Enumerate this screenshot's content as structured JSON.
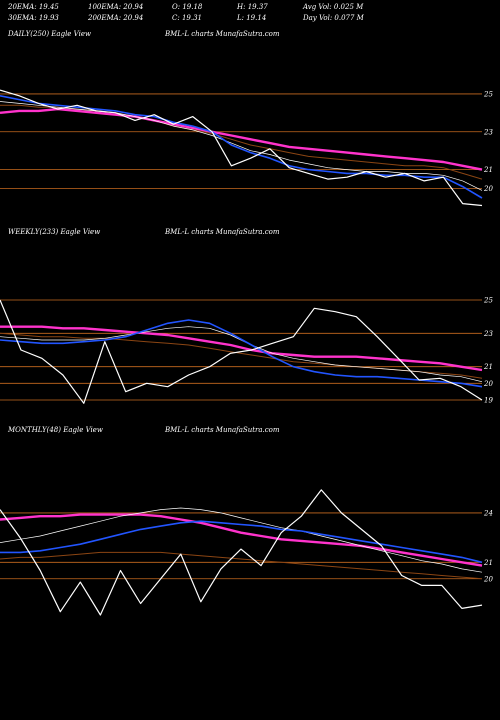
{
  "header": {
    "ema20": "20EMA: 19.45",
    "ema100": "100EMA: 20.94",
    "open": "O: 19.18",
    "high": "H: 19.37",
    "avg_vol": "Avg Vol: 0.025 M",
    "ema30": "30EMA: 19.93",
    "ema200": "200EMA: 20.94",
    "close": "C: 19.31",
    "low": "L: 19.14",
    "day_vol": "Day Vol: 0.077 M"
  },
  "colors": {
    "price": "#ffffff",
    "ema_blue": "#2255ff",
    "ema_magenta": "#ff33cc",
    "ema_brown": "#8b4513",
    "ema_white": "#ffffff",
    "grid": "#c76a1f"
  },
  "chart_data": [
    {
      "type": "line",
      "panel": "daily",
      "title": "DAILY(250) Eagle  View",
      "watermark": "BML-L charts MunafaSutra.com",
      "yticks": [
        25,
        23,
        21,
        20
      ],
      "ylim": [
        18.6,
        26.0
      ],
      "x": [
        0,
        10,
        20,
        30,
        40,
        50,
        60,
        70,
        80,
        90,
        100,
        110,
        120,
        130,
        140,
        150,
        160,
        170,
        180,
        190,
        200,
        210,
        220,
        230,
        240,
        250
      ],
      "series": [
        {
          "role": "price",
          "values": [
            25.2,
            24.9,
            24.5,
            24.2,
            24.4,
            24.1,
            24.0,
            23.6,
            23.9,
            23.4,
            23.8,
            23.0,
            21.2,
            21.6,
            22.1,
            21.1,
            20.8,
            20.5,
            20.6,
            20.9,
            20.6,
            20.8,
            20.4,
            20.6,
            19.2,
            19.1
          ]
        },
        {
          "role": "ema_blue",
          "values": [
            24.9,
            24.7,
            24.5,
            24.4,
            24.3,
            24.2,
            24.1,
            23.9,
            23.8,
            23.5,
            23.3,
            23.0,
            22.3,
            21.9,
            21.6,
            21.2,
            21.0,
            20.9,
            20.8,
            20.8,
            20.7,
            20.7,
            20.6,
            20.6,
            20.1,
            19.5
          ]
        },
        {
          "role": "ema_magenta",
          "values": [
            24.0,
            24.1,
            24.1,
            24.2,
            24.1,
            24.0,
            23.9,
            23.8,
            23.6,
            23.4,
            23.2,
            23.0,
            22.8,
            22.6,
            22.4,
            22.2,
            22.1,
            22.0,
            21.9,
            21.8,
            21.7,
            21.6,
            21.5,
            21.4,
            21.2,
            21.0
          ]
        },
        {
          "role": "ema_brown",
          "values": [
            24.4,
            24.4,
            24.3,
            24.3,
            24.2,
            24.1,
            24.0,
            23.8,
            23.6,
            23.3,
            23.1,
            22.9,
            22.6,
            22.3,
            22.1,
            21.9,
            21.7,
            21.6,
            21.5,
            21.4,
            21.3,
            21.2,
            21.2,
            21.1,
            20.8,
            20.5
          ]
        },
        {
          "role": "ema_white",
          "values": [
            24.6,
            24.5,
            24.4,
            24.3,
            24.2,
            24.1,
            24.0,
            23.8,
            23.6,
            23.3,
            23.1,
            22.8,
            22.4,
            22.0,
            21.8,
            21.5,
            21.3,
            21.1,
            21.0,
            20.9,
            20.9,
            20.8,
            20.8,
            20.7,
            20.4,
            19.9
          ]
        }
      ]
    },
    {
      "type": "line",
      "panel": "weekly",
      "title": "WEEKLY(233) Eagle  View",
      "watermark": "BML-L charts MunafaSutra.com",
      "yticks": [
        25,
        23,
        21,
        20,
        19
      ],
      "ylim": [
        18.4,
        26.2
      ],
      "x": [
        0,
        10,
        20,
        30,
        40,
        50,
        60,
        70,
        80,
        90,
        100,
        110,
        120,
        130,
        140,
        150,
        160,
        170,
        180,
        190,
        200,
        210,
        220,
        230
      ],
      "series": [
        {
          "role": "price",
          "values": [
            25.0,
            22.0,
            21.5,
            20.5,
            18.8,
            22.5,
            19.5,
            20.0,
            19.8,
            20.5,
            21.0,
            21.8,
            22.0,
            22.4,
            22.8,
            24.5,
            24.3,
            24.0,
            22.8,
            21.5,
            20.2,
            20.3,
            19.8,
            19.0
          ]
        },
        {
          "role": "ema_blue",
          "values": [
            22.6,
            22.5,
            22.4,
            22.4,
            22.5,
            22.6,
            22.8,
            23.2,
            23.6,
            23.8,
            23.6,
            23.0,
            22.3,
            21.6,
            21.0,
            20.7,
            20.5,
            20.4,
            20.4,
            20.3,
            20.2,
            20.1,
            20.0,
            19.8
          ]
        },
        {
          "role": "ema_magenta",
          "values": [
            23.4,
            23.4,
            23.4,
            23.3,
            23.3,
            23.2,
            23.1,
            23.0,
            22.9,
            22.7,
            22.5,
            22.3,
            22.0,
            21.8,
            21.7,
            21.6,
            21.6,
            21.6,
            21.5,
            21.4,
            21.3,
            21.2,
            21.0,
            20.8
          ]
        },
        {
          "role": "ema_brown",
          "values": [
            23.0,
            22.9,
            22.8,
            22.8,
            22.7,
            22.7,
            22.6,
            22.5,
            22.4,
            22.3,
            22.1,
            21.9,
            21.7,
            21.5,
            21.3,
            21.2,
            21.1,
            21.0,
            20.9,
            20.8,
            20.7,
            20.6,
            20.5,
            20.3
          ]
        },
        {
          "role": "ema_white",
          "values": [
            22.8,
            22.7,
            22.6,
            22.6,
            22.6,
            22.7,
            22.9,
            23.1,
            23.3,
            23.4,
            23.3,
            22.9,
            22.3,
            21.8,
            21.5,
            21.3,
            21.1,
            21.0,
            20.9,
            20.8,
            20.7,
            20.5,
            20.4,
            20.1
          ]
        }
      ]
    },
    {
      "type": "line",
      "panel": "monthly",
      "title": "MONTHLY(48) Eagle  View",
      "watermark": "BML-L charts MunafaSutra.com",
      "yticks": [
        24,
        21,
        20
      ],
      "ylim": [
        17.8,
        26.0
      ],
      "x": [
        0,
        2,
        4,
        6,
        8,
        10,
        12,
        14,
        16,
        18,
        20,
        22,
        24,
        26,
        28,
        30,
        32,
        34,
        36,
        38,
        40,
        42,
        44,
        46,
        48
      ],
      "series": [
        {
          "role": "price",
          "values": [
            24.2,
            22.5,
            20.5,
            18.0,
            19.8,
            17.8,
            20.5,
            18.5,
            20.0,
            21.5,
            18.6,
            20.6,
            21.8,
            20.8,
            22.8,
            23.8,
            25.4,
            24.0,
            23.0,
            22.0,
            20.2,
            19.6,
            19.6,
            18.2,
            18.4
          ]
        },
        {
          "role": "ema_blue",
          "values": [
            21.6,
            21.6,
            21.7,
            21.9,
            22.1,
            22.4,
            22.7,
            23.0,
            23.2,
            23.4,
            23.5,
            23.4,
            23.3,
            23.2,
            23.0,
            22.9,
            22.7,
            22.5,
            22.3,
            22.1,
            21.9,
            21.7,
            21.5,
            21.3,
            21.0
          ]
        },
        {
          "role": "ema_magenta",
          "values": [
            23.6,
            23.7,
            23.8,
            23.8,
            23.9,
            23.9,
            23.9,
            23.9,
            23.8,
            23.6,
            23.4,
            23.1,
            22.8,
            22.6,
            22.4,
            22.3,
            22.2,
            22.1,
            22.0,
            21.8,
            21.6,
            21.4,
            21.2,
            21.0,
            20.8
          ]
        },
        {
          "role": "ema_brown",
          "values": [
            21.2,
            21.3,
            21.3,
            21.4,
            21.5,
            21.6,
            21.6,
            21.6,
            21.6,
            21.5,
            21.4,
            21.3,
            21.2,
            21.1,
            21.0,
            20.9,
            20.8,
            20.7,
            20.6,
            20.5,
            20.4,
            20.3,
            20.2,
            20.1,
            20.0
          ]
        },
        {
          "role": "ema_white",
          "values": [
            22.2,
            22.4,
            22.6,
            22.9,
            23.2,
            23.5,
            23.8,
            24.0,
            24.2,
            24.3,
            24.2,
            24.0,
            23.7,
            23.4,
            23.1,
            22.9,
            22.6,
            22.3,
            22.0,
            21.7,
            21.4,
            21.1,
            20.9,
            20.6,
            20.4
          ]
        }
      ]
    }
  ]
}
